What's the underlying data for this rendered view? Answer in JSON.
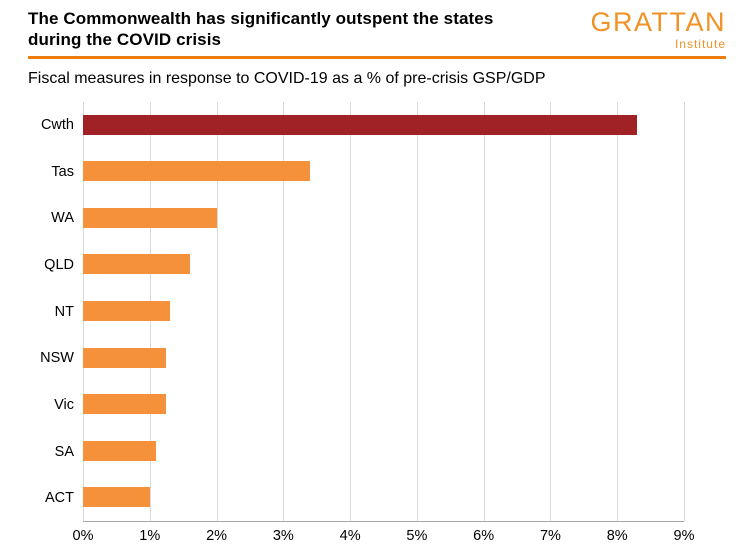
{
  "header": {
    "title_line1": "The Commonwealth has significantly outspent the states",
    "title_line2": "during the COVID crisis",
    "logo": {
      "name": "GRATTAN",
      "subname": "Institute"
    }
  },
  "subtitle": "Fiscal measures in response to COVID-19 as a % of pre-crisis GSP/GDP",
  "colors": {
    "highlight_red": "#A02226",
    "bar_orange": "#F5913B",
    "logo_orange": "#F09226",
    "divider_orange": "#EE7D11",
    "gridline_gray": "#D9D9D9",
    "axis_gray": "#A6A6A6"
  },
  "chart_data": {
    "type": "bar",
    "orientation": "horizontal",
    "title": "The Commonwealth has significantly outspent the states during the COVID crisis",
    "subtitle": "Fiscal measures in response to COVID-19 as a % of pre-crisis GSP/GDP",
    "categories": [
      "Cwth",
      "Tas",
      "WA",
      "QLD",
      "NT",
      "NSW",
      "Vic",
      "SA",
      "ACT"
    ],
    "values": [
      8.3,
      3.4,
      2.0,
      1.6,
      1.3,
      1.25,
      1.25,
      1.1,
      1.0
    ],
    "unit": "% of pre-crisis GSP/GDP",
    "xlim": [
      0,
      9
    ],
    "x_ticks": [
      "0%",
      "1%",
      "2%",
      "3%",
      "4%",
      "5%",
      "6%",
      "7%",
      "8%",
      "9%"
    ],
    "grid": true,
    "legend": "none",
    "bar_colors": [
      "#A02226",
      "#F5913B",
      "#F5913B",
      "#F5913B",
      "#F5913B",
      "#F5913B",
      "#F5913B",
      "#F5913B",
      "#F5913B"
    ]
  }
}
